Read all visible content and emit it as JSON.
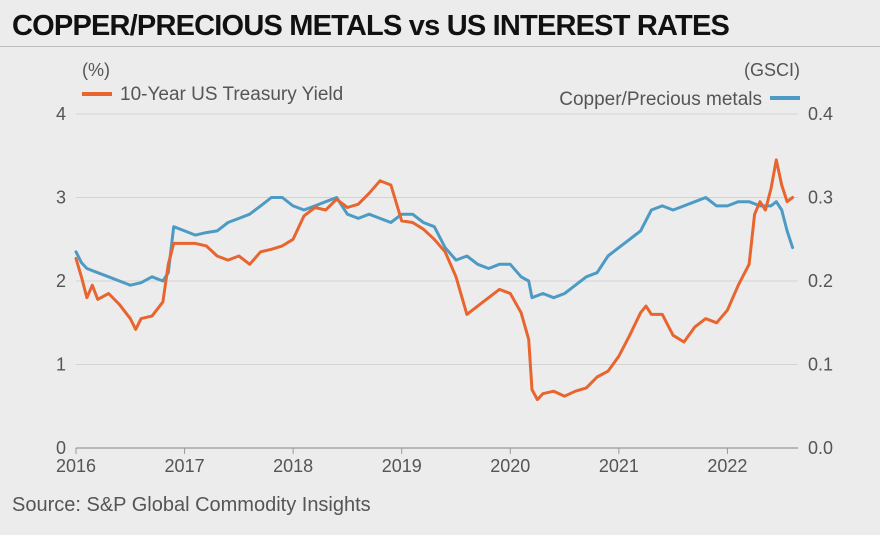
{
  "title": "COPPER/PRECIOUS METALS vs US INTEREST RATES",
  "source": "Source: S&P Global Commodity Insights",
  "chart_data": {
    "type": "line",
    "title": "COPPER/PRECIOUS METALS vs US INTEREST RATES",
    "x_ticks": [
      "2016",
      "2017",
      "2018",
      "2019",
      "2020",
      "2021",
      "2022"
    ],
    "x_range": [
      2016.0,
      2022.65
    ],
    "left_axis": {
      "unit": "(%)",
      "range": [
        0,
        4
      ],
      "ticks": [
        "0",
        "1",
        "2",
        "3",
        "4"
      ]
    },
    "right_axis": {
      "unit": "(GSCI)",
      "range": [
        0.0,
        0.4
      ],
      "ticks": [
        "0.0",
        "0.1",
        "0.2",
        "0.3",
        "0.4"
      ]
    },
    "grid": true,
    "colors": {
      "yield": "#e8652f",
      "ratio": "#4d9bc4",
      "grid": "#d3d3d3",
      "axis": "#999999"
    },
    "series": [
      {
        "name": "10-Year US Treasury Yield",
        "axis": "left",
        "legend_position": "top-left",
        "x": [
          2016.0,
          2016.05,
          2016.1,
          2016.15,
          2016.2,
          2016.3,
          2016.4,
          2016.5,
          2016.55,
          2016.6,
          2016.7,
          2016.8,
          2016.85,
          2016.9,
          2017.0,
          2017.1,
          2017.2,
          2017.3,
          2017.4,
          2017.5,
          2017.6,
          2017.7,
          2017.8,
          2017.9,
          2018.0,
          2018.1,
          2018.2,
          2018.3,
          2018.4,
          2018.5,
          2018.6,
          2018.7,
          2018.8,
          2018.9,
          2019.0,
          2019.1,
          2019.2,
          2019.3,
          2019.4,
          2019.5,
          2019.6,
          2019.7,
          2019.8,
          2019.9,
          2020.0,
          2020.1,
          2020.17,
          2020.2,
          2020.25,
          2020.3,
          2020.4,
          2020.5,
          2020.6,
          2020.7,
          2020.8,
          2020.9,
          2021.0,
          2021.1,
          2021.2,
          2021.25,
          2021.3,
          2021.4,
          2021.5,
          2021.6,
          2021.7,
          2021.8,
          2021.9,
          2022.0,
          2022.1,
          2022.2,
          2022.25,
          2022.3,
          2022.35,
          2022.4,
          2022.45,
          2022.5,
          2022.55,
          2022.6
        ],
        "values": [
          2.27,
          2.05,
          1.8,
          1.95,
          1.78,
          1.85,
          1.72,
          1.55,
          1.42,
          1.55,
          1.58,
          1.75,
          2.2,
          2.45,
          2.45,
          2.45,
          2.42,
          2.3,
          2.25,
          2.3,
          2.2,
          2.35,
          2.38,
          2.42,
          2.5,
          2.78,
          2.88,
          2.85,
          2.98,
          2.88,
          2.92,
          3.05,
          3.2,
          3.15,
          2.72,
          2.7,
          2.62,
          2.5,
          2.35,
          2.05,
          1.6,
          1.7,
          1.8,
          1.9,
          1.85,
          1.62,
          1.3,
          0.7,
          0.58,
          0.65,
          0.68,
          0.62,
          0.68,
          0.72,
          0.85,
          0.92,
          1.1,
          1.35,
          1.62,
          1.7,
          1.6,
          1.6,
          1.35,
          1.27,
          1.45,
          1.55,
          1.5,
          1.65,
          1.95,
          2.2,
          2.8,
          2.95,
          2.85,
          3.1,
          3.45,
          3.15,
          2.95,
          3.0
        ]
      },
      {
        "name": "Copper/Precious metals",
        "axis": "right",
        "legend_position": "top-right",
        "x": [
          2016.0,
          2016.05,
          2016.1,
          2016.2,
          2016.3,
          2016.4,
          2016.5,
          2016.6,
          2016.7,
          2016.8,
          2016.85,
          2016.9,
          2017.0,
          2017.1,
          2017.2,
          2017.3,
          2017.4,
          2017.5,
          2017.6,
          2017.7,
          2017.8,
          2017.9,
          2018.0,
          2018.1,
          2018.2,
          2018.3,
          2018.4,
          2018.5,
          2018.6,
          2018.7,
          2018.8,
          2018.9,
          2019.0,
          2019.1,
          2019.2,
          2019.3,
          2019.4,
          2019.5,
          2019.6,
          2019.7,
          2019.8,
          2019.9,
          2020.0,
          2020.1,
          2020.17,
          2020.2,
          2020.3,
          2020.4,
          2020.5,
          2020.6,
          2020.7,
          2020.8,
          2020.9,
          2021.0,
          2021.1,
          2021.2,
          2021.3,
          2021.4,
          2021.5,
          2021.6,
          2021.7,
          2021.8,
          2021.9,
          2022.0,
          2022.1,
          2022.2,
          2022.3,
          2022.4,
          2022.45,
          2022.5,
          2022.55,
          2022.6
        ],
        "values": [
          0.235,
          0.222,
          0.215,
          0.21,
          0.205,
          0.2,
          0.195,
          0.198,
          0.205,
          0.2,
          0.21,
          0.265,
          0.26,
          0.255,
          0.258,
          0.26,
          0.27,
          0.275,
          0.28,
          0.29,
          0.3,
          0.3,
          0.29,
          0.285,
          0.29,
          0.295,
          0.3,
          0.28,
          0.275,
          0.28,
          0.275,
          0.27,
          0.28,
          0.28,
          0.27,
          0.265,
          0.24,
          0.225,
          0.23,
          0.22,
          0.215,
          0.22,
          0.22,
          0.205,
          0.2,
          0.18,
          0.185,
          0.18,
          0.185,
          0.195,
          0.205,
          0.21,
          0.23,
          0.24,
          0.25,
          0.26,
          0.285,
          0.29,
          0.285,
          0.29,
          0.295,
          0.3,
          0.29,
          0.29,
          0.295,
          0.295,
          0.29,
          0.29,
          0.295,
          0.285,
          0.26,
          0.24
        ]
      }
    ]
  }
}
